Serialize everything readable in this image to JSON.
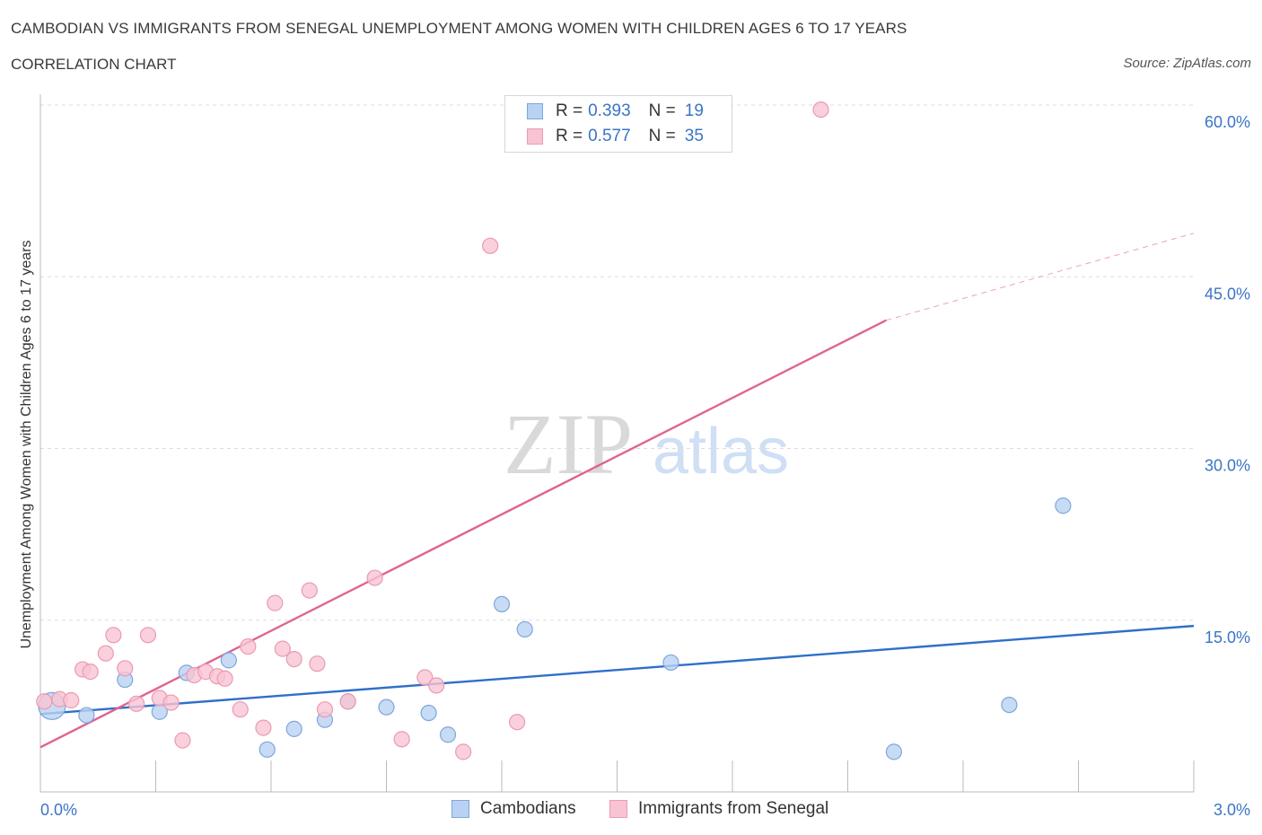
{
  "header": {
    "title": "CAMBODIAN VS IMMIGRANTS FROM SENEGAL UNEMPLOYMENT AMONG WOMEN WITH CHILDREN AGES 6 TO 17 YEARS",
    "subtitle": "CORRELATION CHART",
    "source": "Source: ZipAtlas.com"
  },
  "watermark": {
    "zip": "ZIP",
    "atlas": "atlas"
  },
  "legend": {
    "rows": [
      {
        "r_label": "R =",
        "r_value": "0.393",
        "n_label": "N =",
        "n_value": "19"
      },
      {
        "r_label": "R =",
        "r_value": "0.577",
        "n_label": "N =",
        "n_value": "35"
      }
    ]
  },
  "bottom_legend": [
    "Cambodians",
    "Immigrants from Senegal"
  ],
  "colors": {
    "blue_fill": "#b9d2f3",
    "blue_stroke": "#7ea6dc",
    "blue_line": "#2f6fca",
    "pink_fill": "#f8c4d3",
    "pink_stroke": "#eb9ab2",
    "pink_line": "#e0648f",
    "grid": "#dddddd",
    "axis_label": "#3a74c6"
  },
  "chart_data": {
    "type": "scatter",
    "title": "CAMBODIAN VS IMMIGRANTS FROM SENEGAL UNEMPLOYMENT AMONG WOMEN WITH CHILDREN AGES 6 TO 17 YEARS",
    "xlabel": "",
    "ylabel": "Unemployment Among Women with Children Ages 6 to 17 years",
    "xlim": [
      0,
      3.0
    ],
    "ylim": [
      0,
      60
    ],
    "x_tick_labels": [
      "0.0%",
      "3.0%"
    ],
    "y_ticks": [
      15,
      30,
      45,
      60
    ],
    "y_tick_labels": [
      "15.0%",
      "30.0%",
      "45.0%",
      "60.0%"
    ],
    "grid": true,
    "series": [
      {
        "name": "Cambodians",
        "R": 0.393,
        "N": 19,
        "points": [
          {
            "x": 0.03,
            "y": 7.5,
            "big": true
          },
          {
            "x": 0.12,
            "y": 6.7
          },
          {
            "x": 0.22,
            "y": 9.8
          },
          {
            "x": 0.31,
            "y": 7.0
          },
          {
            "x": 0.38,
            "y": 10.4
          },
          {
            "x": 0.49,
            "y": 11.5
          },
          {
            "x": 0.59,
            "y": 3.7
          },
          {
            "x": 0.66,
            "y": 5.5
          },
          {
            "x": 0.74,
            "y": 6.3
          },
          {
            "x": 0.8,
            "y": 7.9
          },
          {
            "x": 0.9,
            "y": 7.4
          },
          {
            "x": 1.01,
            "y": 6.9
          },
          {
            "x": 1.06,
            "y": 5.0
          },
          {
            "x": 1.2,
            "y": 16.4
          },
          {
            "x": 1.26,
            "y": 14.2
          },
          {
            "x": 1.64,
            "y": 11.3
          },
          {
            "x": 2.52,
            "y": 7.6
          },
          {
            "x": 2.66,
            "y": 25.0
          },
          {
            "x": 2.22,
            "y": 3.5
          }
        ],
        "trend": {
          "x0": 0.0,
          "y0": 6.8,
          "x1": 3.0,
          "y1": 14.5
        }
      },
      {
        "name": "Immigrants from Senegal",
        "R": 0.577,
        "N": 35,
        "points": [
          {
            "x": 0.01,
            "y": 7.9
          },
          {
            "x": 0.05,
            "y": 8.1
          },
          {
            "x": 0.08,
            "y": 8.0
          },
          {
            "x": 0.11,
            "y": 10.7
          },
          {
            "x": 0.13,
            "y": 10.5
          },
          {
            "x": 0.17,
            "y": 12.1
          },
          {
            "x": 0.19,
            "y": 13.7
          },
          {
            "x": 0.22,
            "y": 10.8
          },
          {
            "x": 0.25,
            "y": 7.7
          },
          {
            "x": 0.28,
            "y": 13.7
          },
          {
            "x": 0.31,
            "y": 8.2
          },
          {
            "x": 0.34,
            "y": 7.8
          },
          {
            "x": 0.37,
            "y": 4.5
          },
          {
            "x": 0.4,
            "y": 10.2
          },
          {
            "x": 0.43,
            "y": 10.5
          },
          {
            "x": 0.46,
            "y": 10.1
          },
          {
            "x": 0.48,
            "y": 9.9
          },
          {
            "x": 0.52,
            "y": 7.2
          },
          {
            "x": 0.54,
            "y": 12.7
          },
          {
            "x": 0.58,
            "y": 5.6
          },
          {
            "x": 0.61,
            "y": 16.5
          },
          {
            "x": 0.63,
            "y": 12.5
          },
          {
            "x": 0.66,
            "y": 11.6
          },
          {
            "x": 0.7,
            "y": 17.6
          },
          {
            "x": 0.72,
            "y": 11.2
          },
          {
            "x": 0.74,
            "y": 7.2
          },
          {
            "x": 0.8,
            "y": 7.9
          },
          {
            "x": 0.87,
            "y": 18.7
          },
          {
            "x": 0.94,
            "y": 4.6
          },
          {
            "x": 1.0,
            "y": 10.0
          },
          {
            "x": 1.03,
            "y": 9.3
          },
          {
            "x": 1.1,
            "y": 3.5
          },
          {
            "x": 1.17,
            "y": 47.7
          },
          {
            "x": 1.24,
            "y": 6.1
          },
          {
            "x": 2.03,
            "y": 59.6
          }
        ],
        "trend": {
          "x0": 0.0,
          "y0": 3.9,
          "x1": 2.2,
          "y1": 41.2
        },
        "trend_dashed": {
          "x0": 2.2,
          "y0": 41.2,
          "x1": 3.0,
          "y1": 48.8
        }
      }
    ]
  }
}
